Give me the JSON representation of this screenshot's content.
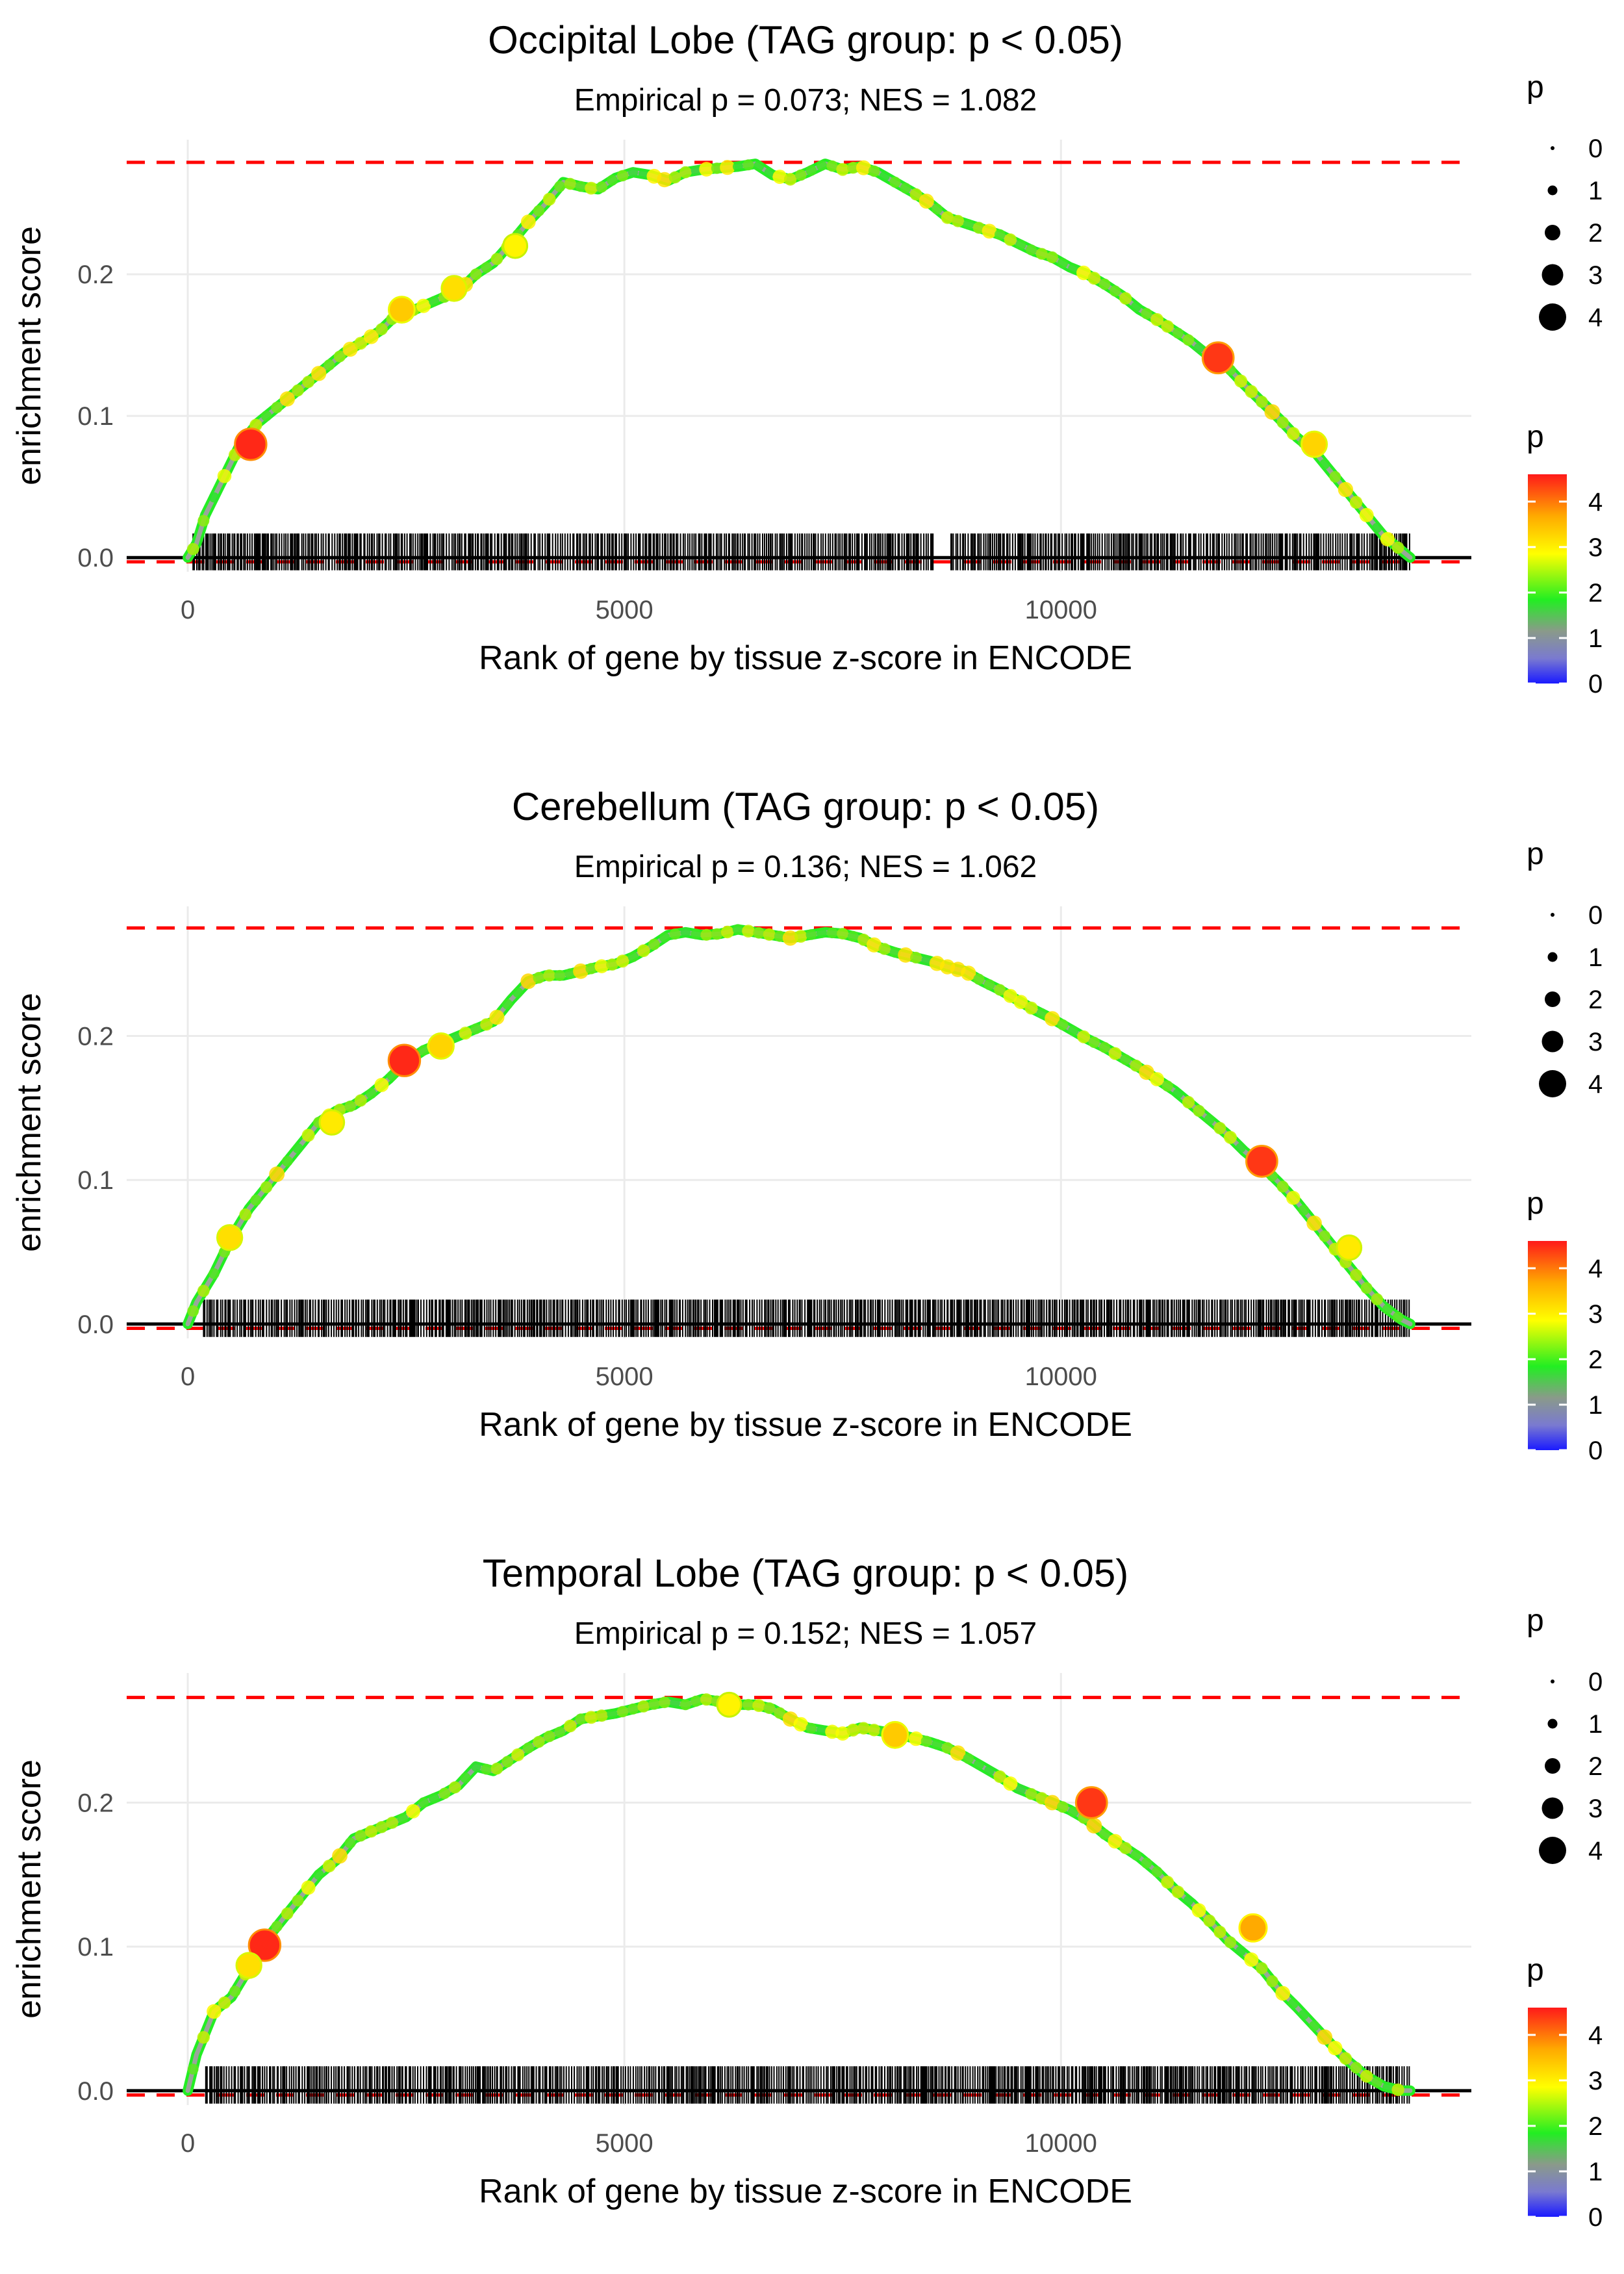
{
  "chart_data": [
    {
      "type": "line",
      "title": "Occipital Lobe (TAG group: p < 0.05)",
      "subtitle": "Empirical p = 0.073; NES = 1.082",
      "xlabel": "Rank of gene by tissue z-score in ENCODE",
      "ylabel": "enrichment score",
      "xlim": [
        -700,
        14700
      ],
      "ylim": [
        -0.01,
        0.295
      ],
      "xticks": [
        0,
        5000,
        10000
      ],
      "xtick_labels": [
        "0",
        "5000",
        "10000"
      ],
      "yticks": [
        0.0,
        0.1,
        0.2
      ],
      "ytick_labels": [
        "0.0",
        "0.1",
        "0.2"
      ],
      "max_es": 0.279,
      "min_es": -0.003,
      "n_genes": 14000,
      "curve": {
        "x": [
          0,
          100,
          200,
          400,
          600,
          800,
          1000,
          1200,
          1500,
          1800,
          2000,
          2200,
          2400,
          2600,
          2900,
          3100,
          3300,
          3500,
          3700,
          3900,
          4100,
          4300,
          4500,
          4700,
          4900,
          5100,
          5300,
          5500,
          5700,
          5900,
          6100,
          6300,
          6500,
          6700,
          6900,
          7100,
          7300,
          7500,
          7700,
          7900,
          8100,
          8300,
          8500,
          8700,
          8900,
          9100,
          9300,
          9500,
          9700,
          9900,
          10100,
          10300,
          10500,
          10700,
          10900,
          11100,
          11300,
          11500,
          11700,
          11900,
          12100,
          12300,
          12500,
          12700,
          12900,
          13100,
          13300,
          13500,
          13700,
          13900,
          14000
        ],
        "y": [
          0.0,
          0.01,
          0.03,
          0.055,
          0.08,
          0.095,
          0.105,
          0.115,
          0.13,
          0.145,
          0.152,
          0.16,
          0.172,
          0.175,
          0.183,
          0.188,
          0.2,
          0.208,
          0.222,
          0.237,
          0.25,
          0.265,
          0.262,
          0.26,
          0.268,
          0.272,
          0.27,
          0.266,
          0.272,
          0.274,
          0.275,
          0.276,
          0.278,
          0.27,
          0.267,
          0.272,
          0.278,
          0.274,
          0.276,
          0.272,
          0.265,
          0.258,
          0.25,
          0.24,
          0.236,
          0.232,
          0.228,
          0.222,
          0.216,
          0.212,
          0.205,
          0.2,
          0.193,
          0.185,
          0.175,
          0.168,
          0.16,
          0.152,
          0.142,
          0.135,
          0.122,
          0.11,
          0.098,
          0.085,
          0.075,
          0.06,
          0.045,
          0.03,
          0.015,
          0.005,
          0.0
        ]
      },
      "highlights": [
        {
          "x": 720,
          "y": 0.08,
          "p": 4.5
        },
        {
          "x": 11800,
          "y": 0.141,
          "p": 4.4
        },
        {
          "x": 2450,
          "y": 0.175,
          "p": 3.3
        },
        {
          "x": 3050,
          "y": 0.19,
          "p": 3.1
        },
        {
          "x": 3750,
          "y": 0.22,
          "p": 2.9
        },
        {
          "x": 12900,
          "y": 0.08,
          "p": 3.2
        }
      ],
      "legend": {
        "size_title": "p",
        "size_labels": [
          "0",
          "1",
          "2",
          "3",
          "4"
        ],
        "color_title": "p",
        "color_labels": [
          "4",
          "3",
          "2",
          "1",
          "0"
        ]
      }
    },
    {
      "type": "line",
      "title": "Cerebellum (TAG group: p < 0.05)",
      "subtitle": "Empirical p = 0.136; NES = 1.062",
      "xlabel": "Rank of gene by tissue z-score in ENCODE",
      "ylabel": "enrichment score",
      "xlim": [
        -700,
        14700
      ],
      "ylim": [
        -0.01,
        0.29
      ],
      "xticks": [
        0,
        5000,
        10000
      ],
      "xtick_labels": [
        "0",
        "5000",
        "10000"
      ],
      "yticks": [
        0.0,
        0.1,
        0.2
      ],
      "ytick_labels": [
        "0.0",
        "0.1",
        "0.2"
      ],
      "max_es": 0.275,
      "min_es": -0.003,
      "n_genes": 14000,
      "curve": {
        "x": [
          0,
          100,
          300,
          500,
          700,
          900,
          1100,
          1300,
          1500,
          1700,
          1900,
          2100,
          2300,
          2500,
          2700,
          2900,
          3100,
          3300,
          3500,
          3700,
          3900,
          4100,
          4300,
          4500,
          4700,
          4900,
          5100,
          5300,
          5500,
          5700,
          5900,
          6100,
          6300,
          6500,
          6700,
          6900,
          7100,
          7300,
          7500,
          7700,
          7900,
          8100,
          8300,
          8500,
          8700,
          8900,
          9100,
          9300,
          9500,
          9700,
          9900,
          10100,
          10300,
          10500,
          10700,
          10900,
          11100,
          11300,
          11500,
          11700,
          11900,
          12100,
          12300,
          12500,
          12700,
          12900,
          13100,
          13300,
          13500,
          13700,
          13900,
          14000
        ],
        "y": [
          0.0,
          0.015,
          0.035,
          0.06,
          0.08,
          0.095,
          0.11,
          0.125,
          0.14,
          0.148,
          0.152,
          0.16,
          0.17,
          0.182,
          0.19,
          0.195,
          0.2,
          0.205,
          0.21,
          0.225,
          0.238,
          0.242,
          0.242,
          0.245,
          0.248,
          0.25,
          0.255,
          0.262,
          0.27,
          0.272,
          0.27,
          0.271,
          0.274,
          0.272,
          0.27,
          0.268,
          0.27,
          0.272,
          0.271,
          0.268,
          0.262,
          0.258,
          0.255,
          0.252,
          0.248,
          0.245,
          0.238,
          0.232,
          0.225,
          0.218,
          0.212,
          0.205,
          0.198,
          0.192,
          0.185,
          0.178,
          0.17,
          0.162,
          0.152,
          0.142,
          0.132,
          0.12,
          0.11,
          0.098,
          0.085,
          0.07,
          0.055,
          0.04,
          0.025,
          0.012,
          0.003,
          0.0
        ]
      },
      "highlights": [
        {
          "x": 2480,
          "y": 0.183,
          "p": 4.5
        },
        {
          "x": 12300,
          "y": 0.113,
          "p": 4.4
        },
        {
          "x": 2900,
          "y": 0.193,
          "p": 3.2
        },
        {
          "x": 1650,
          "y": 0.14,
          "p": 3.0
        },
        {
          "x": 480,
          "y": 0.06,
          "p": 3.1
        },
        {
          "x": 13300,
          "y": 0.053,
          "p": 3.0
        }
      ],
      "legend": {
        "size_title": "p",
        "size_labels": [
          "0",
          "1",
          "2",
          "3",
          "4"
        ],
        "color_title": "p",
        "color_labels": [
          "4",
          "3",
          "2",
          "1",
          "0"
        ]
      }
    },
    {
      "type": "line",
      "title": "Temporal Lobe (TAG group: p < 0.05)",
      "subtitle": "Empirical p = 0.152; NES = 1.057",
      "xlabel": "Rank of gene by tissue z-score in ENCODE",
      "ylabel": "enrichment score",
      "xlim": [
        -700,
        14700
      ],
      "ylim": [
        -0.01,
        0.29
      ],
      "xticks": [
        0,
        5000,
        10000
      ],
      "xtick_labels": [
        "0",
        "5000",
        "10000"
      ],
      "yticks": [
        0.0,
        0.1,
        0.2
      ],
      "ytick_labels": [
        "0.0",
        "0.1",
        "0.2"
      ],
      "max_es": 0.273,
      "min_es": -0.003,
      "n_genes": 14000,
      "curve": {
        "x": [
          0,
          100,
          300,
          500,
          700,
          900,
          1100,
          1300,
          1500,
          1700,
          1900,
          2100,
          2300,
          2500,
          2700,
          2900,
          3100,
          3300,
          3500,
          3700,
          3900,
          4100,
          4300,
          4500,
          4700,
          4900,
          5100,
          5300,
          5500,
          5700,
          5900,
          6100,
          6300,
          6500,
          6700,
          6900,
          7100,
          7300,
          7500,
          7700,
          7900,
          8100,
          8300,
          8500,
          8700,
          8900,
          9100,
          9300,
          9500,
          9700,
          9900,
          10100,
          10300,
          10500,
          10700,
          10900,
          11100,
          11300,
          11500,
          11700,
          11900,
          12100,
          12300,
          12500,
          12700,
          12900,
          13100,
          13300,
          13500,
          13700,
          13900,
          14000
        ],
        "y": [
          0.0,
          0.025,
          0.055,
          0.065,
          0.085,
          0.105,
          0.12,
          0.135,
          0.15,
          0.16,
          0.175,
          0.18,
          0.185,
          0.19,
          0.2,
          0.205,
          0.212,
          0.225,
          0.222,
          0.23,
          0.238,
          0.245,
          0.25,
          0.258,
          0.26,
          0.262,
          0.265,
          0.268,
          0.27,
          0.268,
          0.272,
          0.27,
          0.268,
          0.268,
          0.265,
          0.258,
          0.252,
          0.25,
          0.248,
          0.252,
          0.25,
          0.248,
          0.245,
          0.242,
          0.238,
          0.232,
          0.225,
          0.218,
          0.21,
          0.205,
          0.2,
          0.195,
          0.188,
          0.178,
          0.17,
          0.162,
          0.152,
          0.14,
          0.13,
          0.118,
          0.105,
          0.095,
          0.085,
          0.07,
          0.058,
          0.045,
          0.032,
          0.02,
          0.01,
          0.003,
          0.0,
          0.0
        ]
      },
      "highlights": [
        {
          "x": 880,
          "y": 0.101,
          "p": 4.5
        },
        {
          "x": 10350,
          "y": 0.2,
          "p": 4.4
        },
        {
          "x": 8100,
          "y": 0.247,
          "p": 3.3
        },
        {
          "x": 12200,
          "y": 0.113,
          "p": 3.6
        },
        {
          "x": 700,
          "y": 0.087,
          "p": 3.1
        },
        {
          "x": 6200,
          "y": 0.268,
          "p": 2.9
        }
      ],
      "legend": {
        "size_title": "p",
        "size_labels": [
          "0",
          "1",
          "2",
          "3",
          "4"
        ],
        "color_title": "p",
        "color_labels": [
          "4",
          "3",
          "2",
          "1",
          "0"
        ]
      }
    }
  ]
}
